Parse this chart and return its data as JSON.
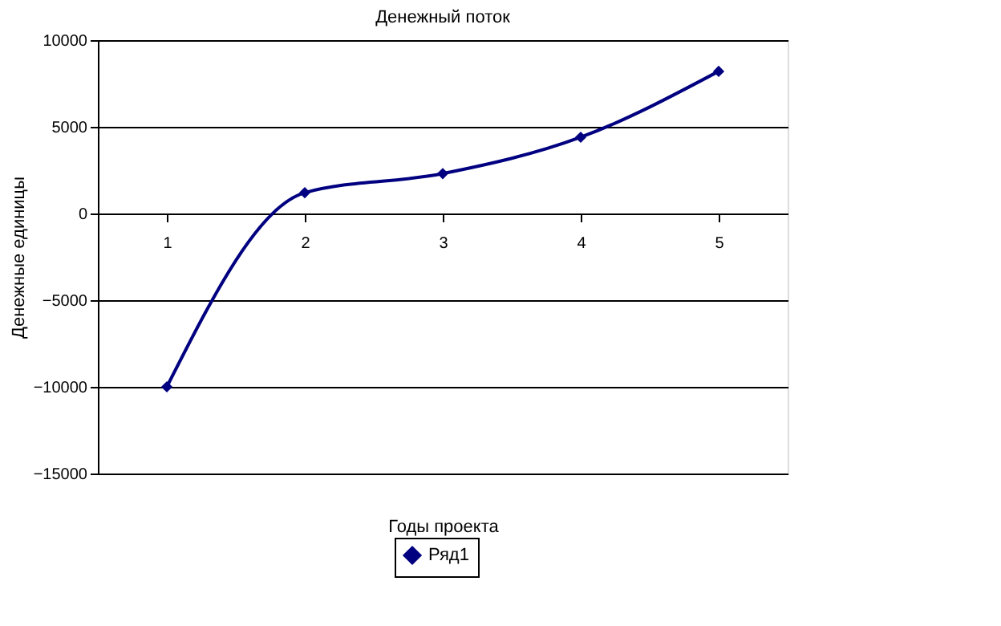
{
  "chart_data": {
    "type": "line",
    "title": "Денежный поток",
    "xlabel": "Годы проекта",
    "ylabel": "Денежные единицы",
    "categories": [
      "1",
      "2",
      "3",
      "4",
      "5"
    ],
    "series": [
      {
        "name": "Ряд1",
        "color": "#000080",
        "values": [
          -10000,
          1200,
          2300,
          4400,
          8200
        ]
      }
    ],
    "ylim": [
      -15000,
      10000
    ],
    "yticks": [
      -15000,
      -10000,
      -5000,
      0,
      5000,
      10000
    ],
    "grid": "y",
    "legend": "bottom",
    "marker": "diamond",
    "line_style": "solid"
  }
}
